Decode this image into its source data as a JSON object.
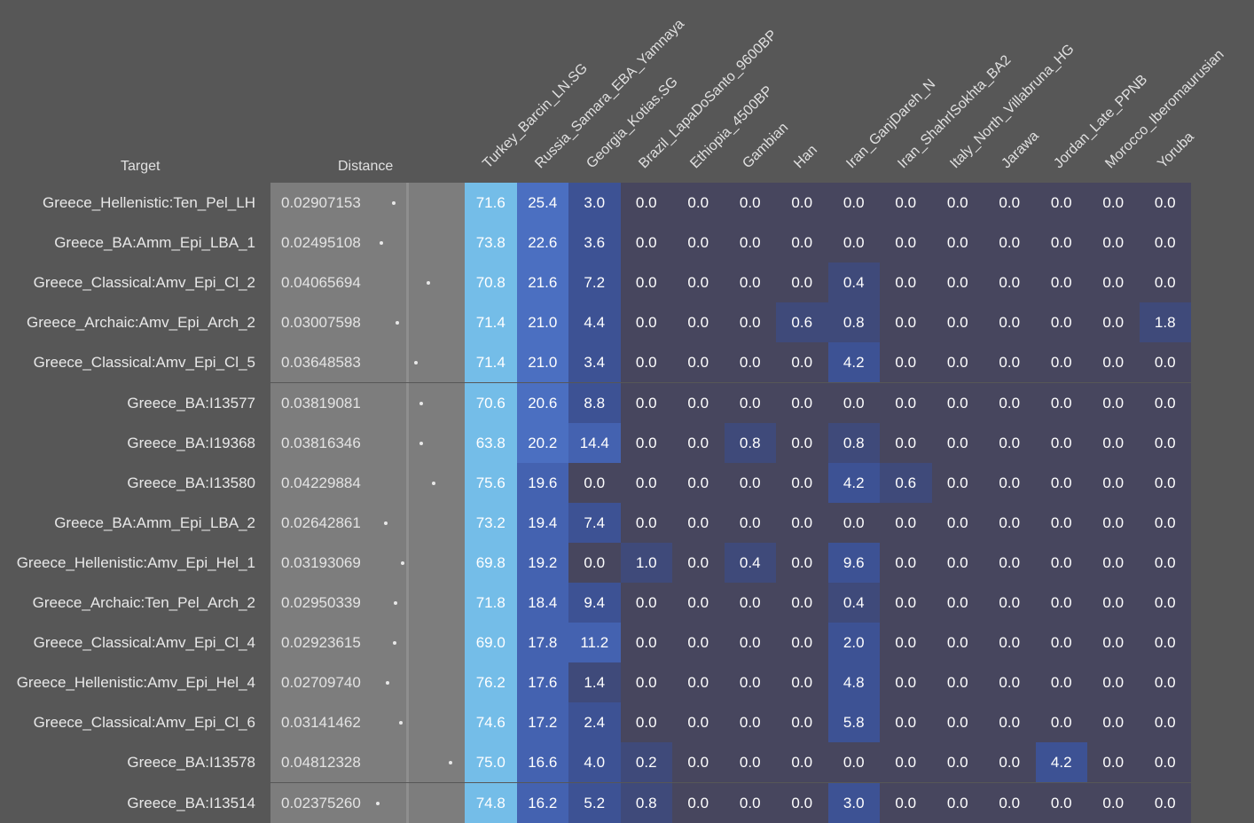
{
  "header": {
    "target_label": "Target",
    "distance_label": "Distance"
  },
  "chart_data": {
    "type": "heatmap",
    "columns": [
      "Turkey_Barcin_LN.SG",
      "Russia_Samara_EBA_Yamnaya",
      "Georgia_Kotias.SG",
      "Brazil_LapaDoSanto_9600BP",
      "Ethiopia_4500BP",
      "Gambian",
      "Han",
      "Iran_GanjDareh_N",
      "Iran_ShahrISokhta_BA2",
      "Italy_North_Villabruna_HG",
      "Jarawa",
      "Jordan_Late_PPNB",
      "Morocco_Iberomaurusian",
      "Yoruba"
    ],
    "rows": [
      {
        "target": "Greece_Hellenistic:Ten_Pel_LH",
        "distance": "0.02907153",
        "values": [
          71.6,
          25.4,
          3.0,
          0.0,
          0.0,
          0.0,
          0.0,
          0.0,
          0.0,
          0.0,
          0.0,
          0.0,
          0.0,
          0.0
        ]
      },
      {
        "target": "Greece_BA:Amm_Epi_LBA_1",
        "distance": "0.02495108",
        "values": [
          73.8,
          22.6,
          3.6,
          0.0,
          0.0,
          0.0,
          0.0,
          0.0,
          0.0,
          0.0,
          0.0,
          0.0,
          0.0,
          0.0
        ]
      },
      {
        "target": "Greece_Classical:Amv_Epi_Cl_2",
        "distance": "0.04065694",
        "values": [
          70.8,
          21.6,
          7.2,
          0.0,
          0.0,
          0.0,
          0.0,
          0.4,
          0.0,
          0.0,
          0.0,
          0.0,
          0.0,
          0.0
        ]
      },
      {
        "target": "Greece_Archaic:Amv_Epi_Arch_2",
        "distance": "0.03007598",
        "values": [
          71.4,
          21.0,
          4.4,
          0.0,
          0.0,
          0.0,
          0.6,
          0.8,
          0.0,
          0.0,
          0.0,
          0.0,
          0.0,
          1.8
        ]
      },
      {
        "target": "Greece_Classical:Amv_Epi_Cl_5",
        "distance": "0.03648583",
        "values": [
          71.4,
          21.0,
          3.4,
          0.0,
          0.0,
          0.0,
          0.0,
          4.2,
          0.0,
          0.0,
          0.0,
          0.0,
          0.0,
          0.0
        ]
      },
      {
        "target": "Greece_BA:I13577",
        "distance": "0.03819081",
        "values": [
          70.6,
          20.6,
          8.8,
          0.0,
          0.0,
          0.0,
          0.0,
          0.0,
          0.0,
          0.0,
          0.0,
          0.0,
          0.0,
          0.0
        ]
      },
      {
        "target": "Greece_BA:I19368",
        "distance": "0.03816346",
        "values": [
          63.8,
          20.2,
          14.4,
          0.0,
          0.0,
          0.8,
          0.0,
          0.8,
          0.0,
          0.0,
          0.0,
          0.0,
          0.0,
          0.0
        ]
      },
      {
        "target": "Greece_BA:I13580",
        "distance": "0.04229884",
        "values": [
          75.6,
          19.6,
          0.0,
          0.0,
          0.0,
          0.0,
          0.0,
          4.2,
          0.6,
          0.0,
          0.0,
          0.0,
          0.0,
          0.0
        ]
      },
      {
        "target": "Greece_BA:Amm_Epi_LBA_2",
        "distance": "0.02642861",
        "values": [
          73.2,
          19.4,
          7.4,
          0.0,
          0.0,
          0.0,
          0.0,
          0.0,
          0.0,
          0.0,
          0.0,
          0.0,
          0.0,
          0.0
        ]
      },
      {
        "target": "Greece_Hellenistic:Amv_Epi_Hel_1",
        "distance": "0.03193069",
        "values": [
          69.8,
          19.2,
          0.0,
          1.0,
          0.0,
          0.4,
          0.0,
          9.6,
          0.0,
          0.0,
          0.0,
          0.0,
          0.0,
          0.0
        ]
      },
      {
        "target": "Greece_Archaic:Ten_Pel_Arch_2",
        "distance": "0.02950339",
        "values": [
          71.8,
          18.4,
          9.4,
          0.0,
          0.0,
          0.0,
          0.0,
          0.4,
          0.0,
          0.0,
          0.0,
          0.0,
          0.0,
          0.0
        ]
      },
      {
        "target": "Greece_Classical:Amv_Epi_Cl_4",
        "distance": "0.02923615",
        "values": [
          69.0,
          17.8,
          11.2,
          0.0,
          0.0,
          0.0,
          0.0,
          2.0,
          0.0,
          0.0,
          0.0,
          0.0,
          0.0,
          0.0
        ]
      },
      {
        "target": "Greece_Hellenistic:Amv_Epi_Hel_4",
        "distance": "0.02709740",
        "values": [
          76.2,
          17.6,
          1.4,
          0.0,
          0.0,
          0.0,
          0.0,
          4.8,
          0.0,
          0.0,
          0.0,
          0.0,
          0.0,
          0.0
        ]
      },
      {
        "target": "Greece_Classical:Amv_Epi_Cl_6",
        "distance": "0.03141462",
        "values": [
          74.6,
          17.2,
          2.4,
          0.0,
          0.0,
          0.0,
          0.0,
          5.8,
          0.0,
          0.0,
          0.0,
          0.0,
          0.0,
          0.0
        ]
      },
      {
        "target": "Greece_BA:I13578",
        "distance": "0.04812328",
        "values": [
          75.0,
          16.6,
          4.0,
          0.2,
          0.0,
          0.0,
          0.0,
          0.0,
          0.0,
          0.0,
          0.0,
          4.2,
          0.0,
          0.0
        ]
      },
      {
        "target": "Greece_BA:I13514",
        "distance": "0.02375260",
        "values": [
          74.8,
          16.2,
          5.2,
          0.8,
          0.0,
          0.0,
          0.0,
          3.0,
          0.0,
          0.0,
          0.0,
          0.0,
          0.0,
          0.0
        ]
      }
    ],
    "colors": {
      "background": "#575757",
      "distance_bg": "#7d7d7d",
      "zero": "#47465e",
      "low": "#3e4f8c",
      "mid": "#4a68ba",
      "high": "#5c9ad8",
      "top": "#74bde8"
    }
  }
}
